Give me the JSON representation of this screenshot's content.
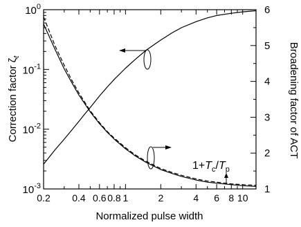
{
  "chart_data": {
    "type": "line",
    "title": "",
    "xlabel": "Normalized pulse width",
    "ylabel_left": "Correction factor ζt",
    "ylabel_left_main": "Correction factor ζ",
    "ylabel_left_sub": "t",
    "ylabel_right": "Broadening factor of ACT",
    "x_scale": "log",
    "xlim": [
      0.2,
      13
    ],
    "x_ticks": [
      0.2,
      0.4,
      0.6,
      0.8,
      1,
      2,
      4,
      6,
      8,
      10
    ],
    "x_tick_labels": [
      "0.2",
      "0.4",
      "0.6",
      "0.8",
      "1",
      "2",
      "4",
      "6",
      "8",
      "10"
    ],
    "y_left_scale": "log",
    "y_left_lim": [
      0.001,
      1
    ],
    "y_left_ticks": [
      {
        "value": 0.001,
        "base": "10",
        "exp": "-3"
      },
      {
        "value": 0.01,
        "base": "10",
        "exp": "-2"
      },
      {
        "value": 0.1,
        "base": "10",
        "exp": "-1"
      },
      {
        "value": 1,
        "base": "10",
        "exp": "0"
      }
    ],
    "y_right_scale": "linear",
    "y_right_lim": [
      1,
      6
    ],
    "y_right_ticks": [
      "1",
      "2",
      "3",
      "4",
      "5",
      "6"
    ],
    "grid": false,
    "legend": "none",
    "annotations": {
      "formula": {
        "prefix": "1+",
        "tc": "T",
        "tc_sub": "c",
        "slash": "/",
        "tp": "T",
        "tp_sub": "p"
      }
    },
    "series": [
      {
        "axis": "left",
        "style": "solid",
        "x": [
          0.2,
          0.25,
          0.3,
          0.35,
          0.4,
          0.45,
          0.5,
          0.6,
          0.7,
          0.8,
          1,
          1.2,
          1.5,
          2,
          2.5,
          3,
          4,
          5,
          6,
          8,
          10,
          13
        ],
        "y": [
          0.0026,
          0.0045,
          0.0068,
          0.0098,
          0.0135,
          0.018,
          0.023,
          0.036,
          0.051,
          0.068,
          0.105,
          0.145,
          0.21,
          0.31,
          0.41,
          0.5,
          0.63,
          0.73,
          0.8,
          0.87,
          0.92,
          0.96
        ]
      },
      {
        "axis": "right",
        "style": "solid",
        "x": [
          0.2,
          0.25,
          0.3,
          0.35,
          0.4,
          0.5,
          0.6,
          0.7,
          0.8,
          1,
          1.2,
          1.5,
          2,
          2.5,
          3,
          4,
          5,
          6,
          8,
          10,
          13
        ],
        "y": [
          5.6,
          4.9,
          4.35,
          3.95,
          3.62,
          3.15,
          2.82,
          2.58,
          2.39,
          2.12,
          1.93,
          1.74,
          1.54,
          1.43,
          1.35,
          1.25,
          1.19,
          1.16,
          1.12,
          1.09,
          1.07
        ]
      },
      {
        "axis": "right",
        "style": "dashed",
        "x": [
          0.2,
          0.25,
          0.3,
          0.35,
          0.4,
          0.5,
          0.6,
          0.7,
          0.8,
          1,
          1.2,
          1.5,
          2,
          2.5,
          3,
          4,
          5,
          6,
          8,
          10,
          13
        ],
        "y": [
          5.8,
          5.0,
          4.45,
          4.02,
          3.68,
          3.18,
          2.85,
          2.6,
          2.42,
          2.15,
          1.96,
          1.77,
          1.57,
          1.46,
          1.38,
          1.28,
          1.22,
          1.19,
          1.14,
          1.12,
          1.1
        ]
      }
    ]
  }
}
